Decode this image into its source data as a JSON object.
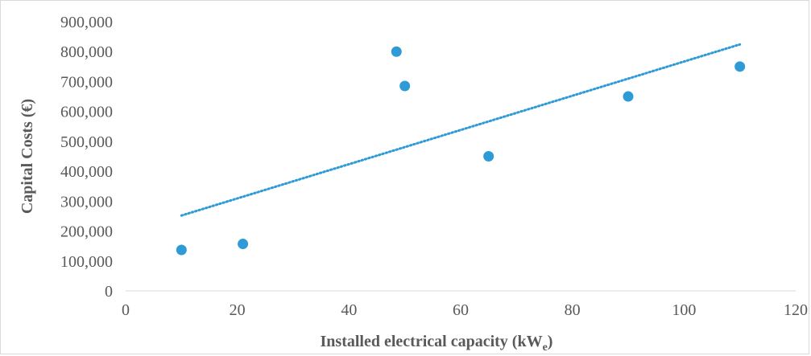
{
  "chart_data": {
    "type": "scatter",
    "title": "",
    "xlabel": "Installed electrical capacity (kW",
    "xlabel_subscript": "e",
    "xlabel_suffix": ")",
    "ylabel": "Capital Costs (€)",
    "xlim": [
      0,
      120
    ],
    "ylim": [
      0,
      900000
    ],
    "x_ticks": [
      0,
      20,
      40,
      60,
      80,
      100,
      120
    ],
    "y_ticks": [
      0,
      100000,
      200000,
      300000,
      400000,
      500000,
      600000,
      700000,
      800000,
      900000
    ],
    "x_tick_labels": [
      "0",
      "20",
      "40",
      "60",
      "80",
      "100",
      "120"
    ],
    "y_tick_labels": [
      "0",
      "100,000",
      "200,000",
      "300,000",
      "400,000",
      "500,000",
      "600,000",
      "700,000",
      "800,000",
      "900,000"
    ],
    "grid": false,
    "legend": "none",
    "marker_color": "#2e9bd6",
    "trendline_color": "#2e9bd6",
    "points": [
      {
        "x": 10,
        "y": 137000
      },
      {
        "x": 21,
        "y": 157000
      },
      {
        "x": 48.5,
        "y": 800000
      },
      {
        "x": 50,
        "y": 685000
      },
      {
        "x": 65,
        "y": 450000
      },
      {
        "x": 90,
        "y": 650000
      },
      {
        "x": 110,
        "y": 750000
      }
    ],
    "trendline": {
      "type": "linear",
      "x_start": 10,
      "x_end": 110,
      "y_start": 252000,
      "y_end": 824000
    }
  }
}
